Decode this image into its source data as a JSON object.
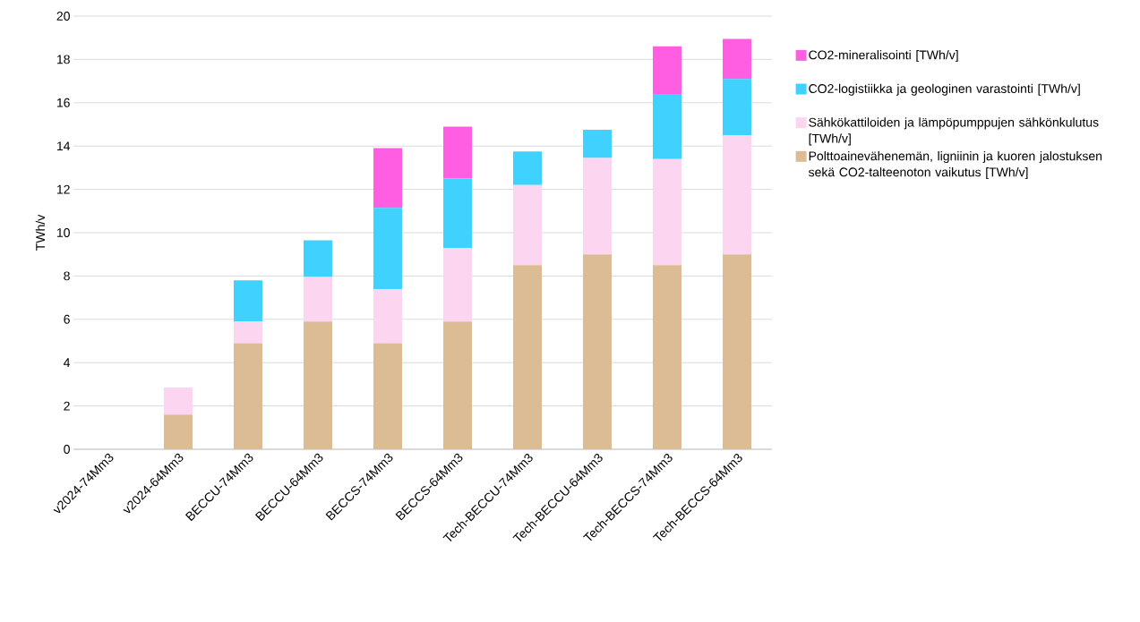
{
  "chart_data": {
    "type": "bar",
    "stacked": true,
    "ylabel": "TWh/v",
    "categories": [
      "v2024-74Mm3",
      "v2024-64Mm3",
      "BECCU-74Mm3",
      "BECCU-64Mm3",
      "BECCS-74Mm3",
      "BECCS-64Mm3",
      "Tech-BECCU-74Mm3",
      "Tech-BECCU-64Mm3",
      "Tech-BECCS-74Mm3",
      "Tech-BECCS-64Mm3"
    ],
    "series": [
      {
        "name": "Polttoainevähenemän, ligniinin ja kuoren jalostuksen sekä CO2-talteenoton vaikutus [TWh/v]",
        "color": "#dcbc94",
        "values": [
          0,
          1.6,
          4.9,
          5.9,
          4.9,
          5.9,
          8.5,
          9.0,
          8.5,
          9.0
        ]
      },
      {
        "name": "Sähkökattiloiden ja lämpöpumppujen sähkönkulutus [TWh/v]",
        "color": "#fcd5f1",
        "values": [
          0,
          1.25,
          1.0,
          2.05,
          2.5,
          3.4,
          3.7,
          4.45,
          4.9,
          5.5
        ]
      },
      {
        "name": "CO2-logistiikka ja geologinen varastointi [TWh/v]",
        "color": "#40d2ff",
        "values": [
          0,
          0,
          1.9,
          1.7,
          3.75,
          3.2,
          1.55,
          1.3,
          3.0,
          2.6
        ]
      },
      {
        "name": "CO2-mineralisointi [TWh/v]",
        "color": "#ff5ee3",
        "values": [
          0,
          0,
          0,
          0,
          2.75,
          2.4,
          0,
          0,
          2.2,
          1.85
        ]
      }
    ],
    "ylim": [
      0,
      20
    ],
    "yticks": [
      0,
      2,
      4,
      6,
      8,
      10,
      12,
      14,
      16,
      18,
      20
    ],
    "grid": "y",
    "legend": "right"
  }
}
